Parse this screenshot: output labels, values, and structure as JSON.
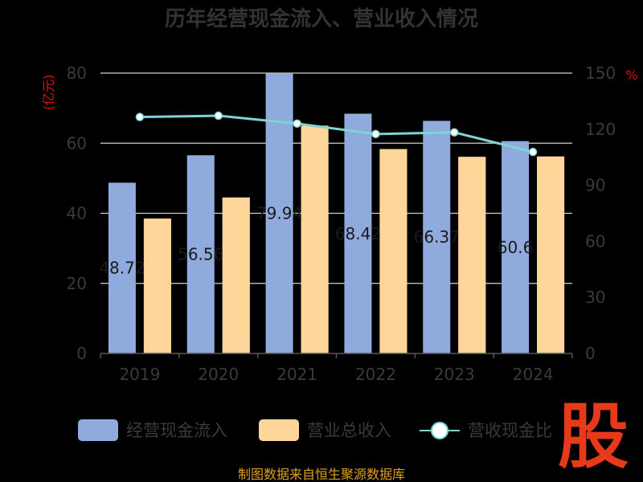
{
  "chart_data": {
    "type": "bar",
    "title": "历年经营现金流入、营业收入情况",
    "categories": [
      "2019",
      "2020",
      "2021",
      "2022",
      "2023",
      "2024"
    ],
    "series": [
      {
        "name": "经营现金流入",
        "axis": "left",
        "color": "#8faadc",
        "values": [
          48.72,
          56.56,
          79.94,
          68.42,
          66.37,
          60.6
        ],
        "labels": [
          "48.72",
          "56.56",
          "79.94",
          "68.42",
          "66.37",
          "60.6"
        ]
      },
      {
        "name": "营业总收入",
        "axis": "left",
        "color": "#ffd699",
        "values": [
          38.5,
          44.5,
          65.0,
          58.3,
          56.1,
          56.2
        ]
      },
      {
        "name": "营收现金比",
        "axis": "right",
        "type": "line",
        "color": "#7fd3d3",
        "values": [
          126.5,
          127.2,
          123.0,
          117.4,
          118.3,
          107.8
        ]
      }
    ],
    "y_left": {
      "unit": "(亿元)",
      "ylim": [
        0,
        80
      ],
      "ticks": [
        "0",
        "20",
        "40",
        "60",
        "80"
      ]
    },
    "y_right": {
      "unit": "%",
      "ylim": [
        0,
        150
      ],
      "ticks": [
        "0",
        "30",
        "60",
        "90",
        "120",
        "150"
      ]
    },
    "grid": true,
    "legend_position": "bottom"
  },
  "source_text": "制图数据来自恒生聚源数据库",
  "watermark": "股"
}
